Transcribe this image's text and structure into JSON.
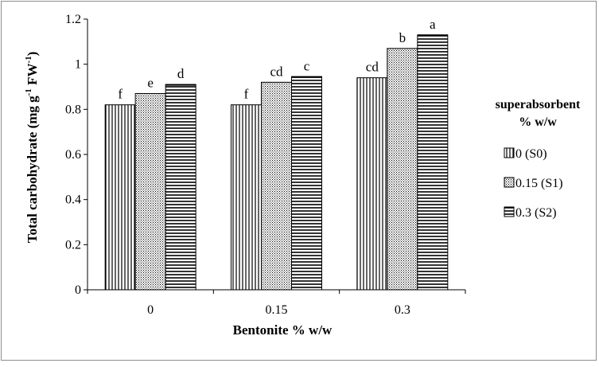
{
  "chart_data": {
    "type": "bar",
    "title": "",
    "xlabel": "Bentonite % w/w",
    "ylabel": "Total carbohydrate (mg g-1 FW-1)",
    "ylabel_parts": {
      "pre": "Total carbohydrate (mg g",
      "sup1": "-1",
      "mid": " FW",
      "sup2": "-1",
      "post": ")"
    },
    "categories": [
      "0",
      "0.15",
      "0.3"
    ],
    "ylim": [
      0,
      1.2
    ],
    "yticks": [
      0,
      0.2,
      0.4,
      0.6,
      0.8,
      1,
      1.2
    ],
    "ytick_labels": [
      "0",
      "0.2",
      "0.4",
      "0.6",
      "0.8",
      "1",
      "1.2"
    ],
    "grid": false,
    "legend": {
      "title_line1": "superabsorbent",
      "title_line2": "% w/w",
      "position": "right"
    },
    "series": [
      {
        "name": "0 (S0)",
        "pattern": "vertical-lines",
        "values": [
          0.82,
          0.82,
          0.94
        ],
        "labels": [
          "f",
          "f",
          "cd"
        ]
      },
      {
        "name": "0.15 (S1)",
        "pattern": "dots",
        "values": [
          0.87,
          0.92,
          1.07
        ],
        "labels": [
          "e",
          "cd",
          "b"
        ]
      },
      {
        "name": "0.3 (S2)",
        "pattern": "horizontal-lines",
        "values": [
          0.91,
          0.945,
          1.13
        ],
        "labels": [
          "d",
          "c",
          "a"
        ]
      }
    ]
  }
}
